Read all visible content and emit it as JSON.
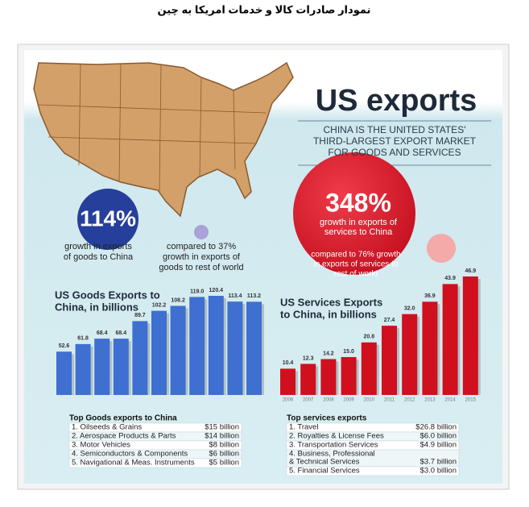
{
  "header": {
    "title": "نمودار صادرات کالا و خدمات امریکا به چین"
  },
  "infographic": {
    "title": "US exports",
    "subtitle": [
      "CHINA IS THE UNITED STATES'",
      "THIRD-LARGEST EXPORT MARKET",
      "FOR GOODS AND SERVICES"
    ],
    "goods_stat": {
      "value": "114%",
      "caption": [
        "growth in exports",
        "of goods to China"
      ]
    },
    "goods_compare": [
      "compared to 37%",
      "growth in exports of",
      "goods to rest of world"
    ],
    "services_stat": {
      "value": "348%",
      "caption": [
        "growth in exports of",
        "services to China"
      ]
    },
    "services_compare": [
      "compared to 76% growth",
      "in exports of services to",
      "rest of world"
    ]
  },
  "chart_data": [
    {
      "type": "bar",
      "title": [
        "US Goods Exports to",
        "China, in billions"
      ],
      "categories": [
        null,
        null,
        null,
        null,
        null,
        null,
        null,
        null,
        null,
        null,
        null
      ],
      "values": [
        52.6,
        61.8,
        68.4,
        68.4,
        89.7,
        102.2,
        108.2,
        119.0,
        120.4,
        113.4,
        113.2
      ],
      "value_labels": [
        "52.6",
        "61.8",
        "68.4",
        "68.4",
        "89.7",
        "102.2",
        "108.2",
        "119.0",
        "120.4",
        "113.4",
        "113.2"
      ],
      "color": "#3f6fd0"
    },
    {
      "type": "bar",
      "title": [
        "US Services Exports",
        "to China, in billions"
      ],
      "categories": [
        "2006",
        "2007",
        "2008",
        "2009",
        "2010",
        "2011",
        "2012",
        "2013",
        "2014",
        "2015"
      ],
      "values": [
        10.4,
        12.3,
        14.2,
        15.0,
        20.8,
        27.4,
        32.0,
        36.9,
        43.9,
        46.9
      ],
      "value_labels": [
        "10.4",
        "12.3",
        "14.2",
        "15.0",
        "20.8",
        "27.4",
        "32.0",
        "36.9",
        "43.9",
        "46.9"
      ],
      "color": "#d0101e"
    }
  ],
  "goods_table": {
    "title": "Top Goods exports to China",
    "rows": [
      {
        "lines": [
          "1. Oilseeds & Grains"
        ],
        "amount": "$15 billion"
      },
      {
        "lines": [
          "2. Aerospace Products & Parts"
        ],
        "amount": "$14 billion"
      },
      {
        "lines": [
          "3. Motor Vehicles"
        ],
        "amount": "$8 billion"
      },
      {
        "lines": [
          "4. Semiconductors & Components"
        ],
        "amount": "$6 billion"
      },
      {
        "lines": [
          "5. Navigational & Meas. Instruments"
        ],
        "amount": "$5 billion"
      }
    ]
  },
  "services_table": {
    "title": "Top services exports",
    "rows": [
      {
        "lines": [
          "1. Travel"
        ],
        "amount": "$26.8 billion"
      },
      {
        "lines": [
          "2. Royalties & License Fees"
        ],
        "amount": "$6.0 billion"
      },
      {
        "lines": [
          "3. Transportation Services"
        ],
        "amount": "$4.9 billion"
      },
      {
        "lines": [
          "4. Business, Professional",
          "& Technical Services"
        ],
        "amount": "$3.7 billion"
      },
      {
        "lines": [
          "5. Financial Services"
        ],
        "amount": "$3.0 billion"
      }
    ]
  }
}
